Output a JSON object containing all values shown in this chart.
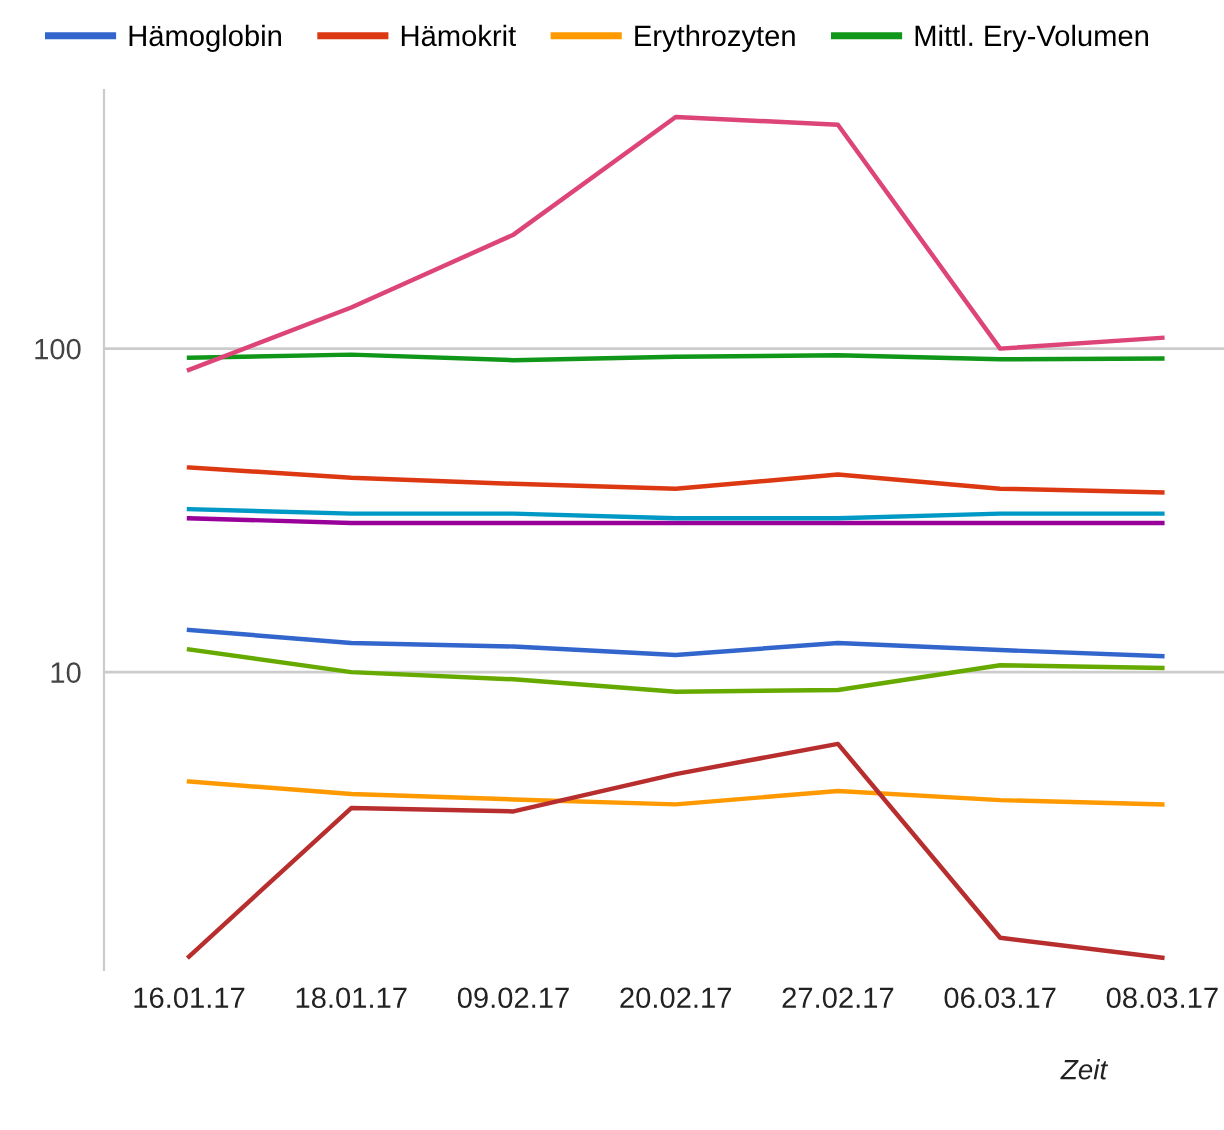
{
  "chart_data": {
    "type": "line",
    "xlabel": "Zeit",
    "categories": [
      "16.01.17",
      "18.01.17",
      "09.02.17",
      "20.02.17",
      "27.02.17",
      "06.03.17",
      "08.03.17"
    ],
    "series": [
      {
        "name": "Hämoglobin",
        "color": "#3366cc",
        "values": [
          13.5,
          12.3,
          12.0,
          11.3,
          12.3,
          11.7,
          11.2
        ]
      },
      {
        "name": "Hämokrit",
        "color": "#dc3912",
        "values": [
          42.9,
          39.9,
          38.2,
          36.9,
          40.8,
          36.9,
          35.9
        ]
      },
      {
        "name": "Erythrozyten",
        "color": "#ff9900",
        "values": [
          4.59,
          4.2,
          4.04,
          3.9,
          4.29,
          4.02,
          3.9
        ]
      },
      {
        "name": "Mittl. Ery-Volumen",
        "color": "#109618",
        "values": [
          93.7,
          95.8,
          92.1,
          94.3,
          95.4,
          92.7,
          93.2
        ]
      },
      {
        "color": "#990099",
        "values": [
          29.9,
          28.9,
          28.9,
          28.9,
          28.9,
          28.9,
          28.9
        ]
      },
      {
        "color": "#0099c6",
        "values": [
          31.9,
          30.9,
          30.9,
          29.9,
          29.9,
          30.9,
          30.9
        ]
      },
      {
        "color": "#dd4477",
        "values": [
          86,
          134,
          225,
          520,
          492,
          100,
          108
        ]
      },
      {
        "color": "#66aa00",
        "values": [
          11.75,
          10.0,
          9.5,
          8.7,
          8.8,
          10.5,
          10.3
        ]
      },
      {
        "color": "#b82e2e",
        "values": [
          1.32,
          3.8,
          3.71,
          4.84,
          6.0,
          1.51,
          1.31
        ]
      }
    ],
    "log": "y",
    "ylim": [
      1.2,
      630
    ],
    "yticks": [
      10,
      100
    ],
    "grid": "y",
    "legend": "top",
    "marker": "none",
    "line_style": "solid"
  }
}
